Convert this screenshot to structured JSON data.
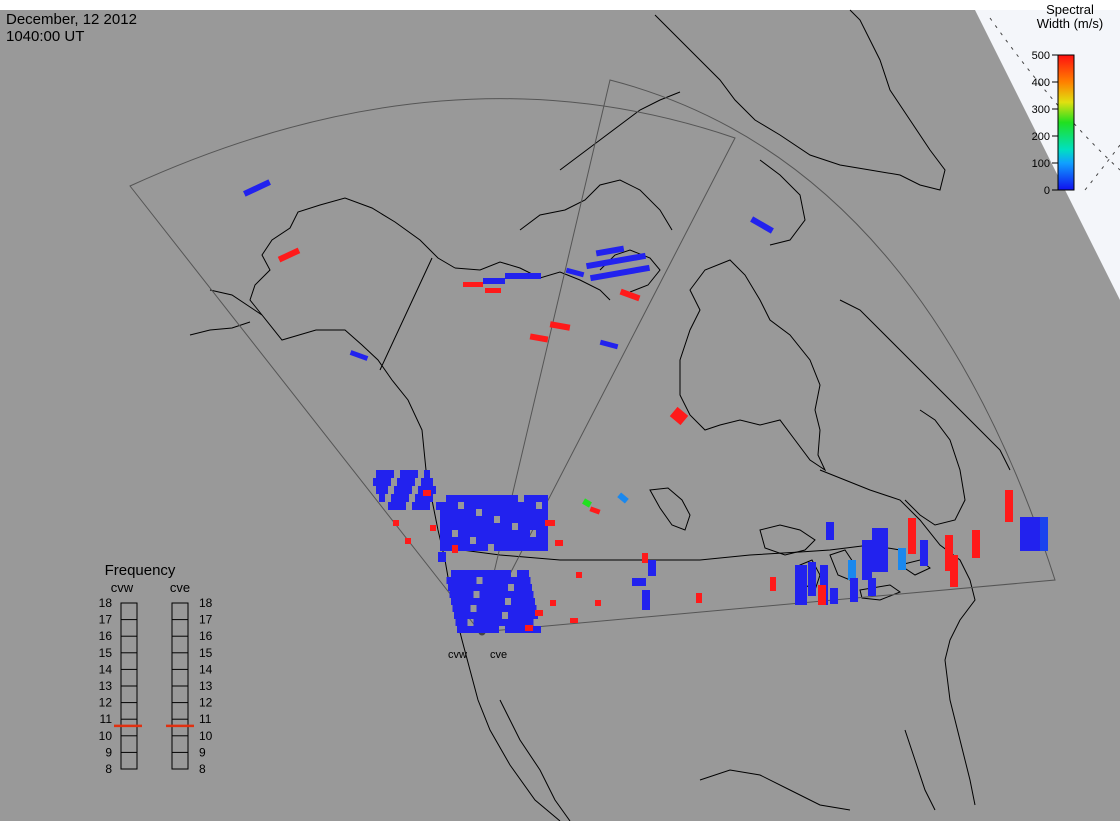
{
  "header": {
    "date": "December, 12 2012",
    "time": "1040:00 UT"
  },
  "colorbar": {
    "title_line1": "Spectral",
    "title_line2": "Width (m/s)",
    "ticks": [
      "500",
      "400",
      "300",
      "200",
      "100",
      "0"
    ]
  },
  "radars": {
    "west": "cvw",
    "east": "cve"
  },
  "frequency_panel": {
    "title": "Frequency",
    "left_label": "cvw",
    "right_label": "cve",
    "scale": [
      "18",
      "17",
      "16",
      "15",
      "14",
      "13",
      "12",
      "11",
      "10",
      "9",
      "8"
    ],
    "cvw_value": 10.6,
    "cve_value": 10.6
  },
  "colors": {
    "background": "#999999",
    "coast": "#000000",
    "fov_outline": "#444444",
    "low_width": "#2222ee",
    "mid_width": "#1a88ee",
    "high_width": "#ff1a1a",
    "freq_marker": "#e03010"
  }
}
